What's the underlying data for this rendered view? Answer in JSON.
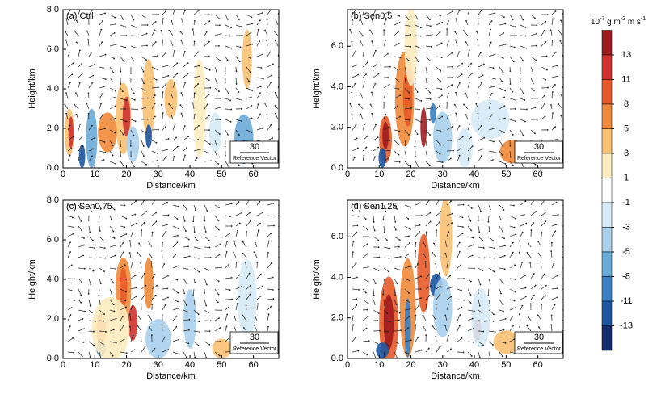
{
  "chart_data": [
    {
      "type": "contour",
      "title": "(a) Ctrl",
      "xlabel": "Distance/km",
      "ylabel": "Height/km",
      "xlim": [
        0,
        68
      ],
      "xticks": [
        0,
        10,
        20,
        30,
        40,
        50,
        60
      ],
      "ylim": [
        0,
        8
      ],
      "yticks": [
        {
          "value": 0,
          "label": "0.0"
        },
        {
          "value": 2,
          "label": "2.0"
        },
        {
          "value": 4,
          "label": "4.0"
        },
        {
          "value": 6,
          "label": "6.0"
        },
        {
          "value": 8,
          "label": "8.0"
        }
      ],
      "ref_vector": {
        "value": 30,
        "label": "Reference Vector"
      }
    },
    {
      "type": "contour",
      "title": "(b) Sen0.5",
      "xlabel": "Distance/km",
      "ylabel": "Height/km",
      "xlim": [
        0,
        68
      ],
      "xticks": [
        0,
        10,
        20,
        30,
        40,
        50,
        60
      ],
      "ylim": [
        0,
        7.8
      ],
      "yticks": [
        {
          "value": 0,
          "label": "0.0"
        },
        {
          "value": 2,
          "label": "2.0"
        },
        {
          "value": 4,
          "label": "4.0"
        },
        {
          "value": 6,
          "label": "6.0"
        }
      ],
      "ref_vector": {
        "value": 30,
        "label": "Reference Vector"
      }
    },
    {
      "type": "contour",
      "title": "(c) Sen0.75",
      "xlabel": "Distance/km",
      "ylabel": "Height/km",
      "xlim": [
        0,
        68
      ],
      "xticks": [
        0,
        10,
        20,
        30,
        40,
        50,
        60
      ],
      "ylim": [
        0,
        8
      ],
      "yticks": [
        {
          "value": 0,
          "label": "0.0"
        },
        {
          "value": 2,
          "label": "2.0"
        },
        {
          "value": 4,
          "label": "4.0"
        },
        {
          "value": 6,
          "label": "6.0"
        },
        {
          "value": 8,
          "label": "8.0"
        }
      ],
      "ref_vector": {
        "value": 30,
        "label": "Reference Vector"
      }
    },
    {
      "type": "contour",
      "title": "(d) Sen1.25",
      "xlabel": "Distance/km",
      "ylabel": "Height/km",
      "xlim": [
        0,
        68
      ],
      "xticks": [
        0,
        10,
        20,
        30,
        40,
        50,
        60
      ],
      "ylim": [
        0,
        7.8
      ],
      "yticks": [
        {
          "value": 0,
          "label": "0.0"
        },
        {
          "value": 2,
          "label": "2.0"
        },
        {
          "value": 4,
          "label": "4.0"
        },
        {
          "value": 6,
          "label": "6.0"
        }
      ],
      "ref_vector": {
        "value": 30,
        "label": "Reference Vector"
      }
    }
  ],
  "colorbar": {
    "units": [
      {
        "text": "10"
      },
      {
        "text": "-7",
        "sup": true
      },
      {
        "text": " g m"
      },
      {
        "text": "-2",
        "sup": true
      },
      {
        "text": " m s"
      },
      {
        "text": "-1",
        "sup": true
      }
    ],
    "levels": [
      13,
      11,
      8,
      5,
      3,
      1,
      -1,
      -3,
      -5,
      -8,
      -11,
      -13
    ],
    "colors": [
      "#9e1b1e",
      "#d0312d",
      "#e75a27",
      "#f08a3a",
      "#f9c072",
      "#feecc0",
      "#ffffff",
      "#d6eaf7",
      "#a8d0ec",
      "#6aaad8",
      "#3a7fc1",
      "#1d55a0",
      "#112d6b"
    ]
  }
}
